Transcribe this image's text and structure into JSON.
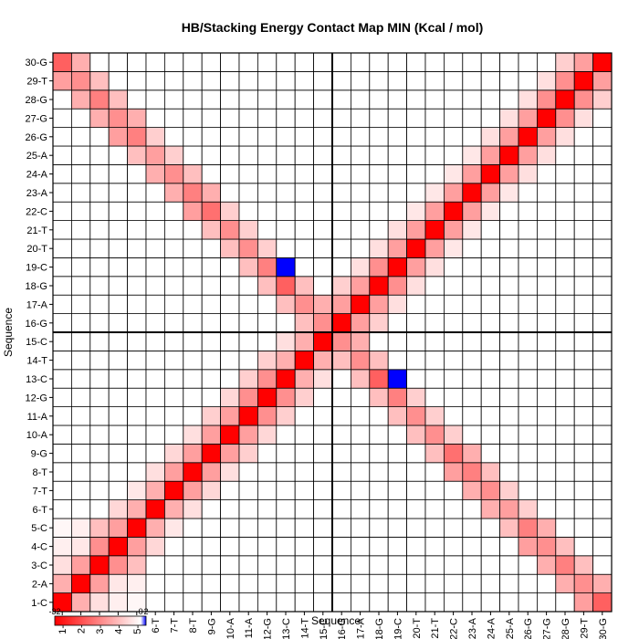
{
  "chart_data": {
    "type": "heatmap",
    "title": "HB/Stacking Energy Contact Map MIN (Kcal / mol)",
    "xlabel": "Sequence",
    "ylabel": "Sequence",
    "labels": [
      "1-C",
      "2-A",
      "3-C",
      "4-C",
      "5-C",
      "6-T",
      "7-T",
      "8-T",
      "9-G",
      "10-A",
      "11-A",
      "12-G",
      "13-C",
      "14-T",
      "15-C",
      "16-G",
      "17-A",
      "18-G",
      "19-C",
      "20-T",
      "21-T",
      "22-C",
      "23-A",
      "24-A",
      "25-A",
      "26-G",
      "27-G",
      "28-G",
      "29-T",
      "30-G"
    ],
    "color_scale": {
      "min": -32,
      "mid": 0,
      "max": 2,
      "min_color": "#ff0000",
      "mid_color": "#ffffff",
      "max_color": "#0000ff"
    },
    "colorbar_ticks": [
      "-32",
      "0",
      "2"
    ],
    "divider_after_index": 15,
    "cells": [
      [
        1,
        1,
        -32
      ],
      [
        1,
        2,
        -10
      ],
      [
        1,
        3,
        -4
      ],
      [
        1,
        4,
        -2
      ],
      [
        1,
        5,
        -1
      ],
      [
        1,
        29,
        -12
      ],
      [
        1,
        30,
        -20
      ],
      [
        2,
        2,
        -32
      ],
      [
        2,
        3,
        -12
      ],
      [
        2,
        4,
        -3
      ],
      [
        2,
        5,
        -2
      ],
      [
        2,
        28,
        -10
      ],
      [
        2,
        29,
        -14
      ],
      [
        2,
        30,
        -10
      ],
      [
        3,
        3,
        -32
      ],
      [
        3,
        4,
        -14
      ],
      [
        3,
        5,
        -8
      ],
      [
        3,
        27,
        -10
      ],
      [
        3,
        28,
        -16
      ],
      [
        3,
        29,
        -8
      ],
      [
        4,
        4,
        -32
      ],
      [
        4,
        5,
        -12
      ],
      [
        4,
        6,
        -5
      ],
      [
        4,
        26,
        -12
      ],
      [
        4,
        27,
        -14
      ],
      [
        4,
        28,
        -8
      ],
      [
        5,
        5,
        -32
      ],
      [
        5,
        6,
        -10
      ],
      [
        5,
        7,
        -3
      ],
      [
        5,
        25,
        -8
      ],
      [
        5,
        26,
        -16
      ],
      [
        5,
        27,
        -10
      ],
      [
        6,
        6,
        -32
      ],
      [
        6,
        7,
        -10
      ],
      [
        6,
        8,
        -4
      ],
      [
        6,
        24,
        -10
      ],
      [
        6,
        25,
        -12
      ],
      [
        6,
        26,
        -6
      ],
      [
        7,
        7,
        -32
      ],
      [
        7,
        8,
        -12
      ],
      [
        7,
        9,
        -5
      ],
      [
        7,
        23,
        -10
      ],
      [
        7,
        24,
        -14
      ],
      [
        7,
        25,
        -6
      ],
      [
        8,
        8,
        -32
      ],
      [
        8,
        9,
        -12
      ],
      [
        8,
        10,
        -4
      ],
      [
        8,
        22,
        -12
      ],
      [
        8,
        23,
        -16
      ],
      [
        8,
        24,
        -8
      ],
      [
        9,
        9,
        -32
      ],
      [
        9,
        10,
        -12
      ],
      [
        9,
        11,
        -6
      ],
      [
        9,
        21,
        -8
      ],
      [
        9,
        22,
        -18
      ],
      [
        9,
        23,
        -10
      ],
      [
        10,
        10,
        -32
      ],
      [
        10,
        11,
        -12
      ],
      [
        10,
        12,
        -5
      ],
      [
        10,
        20,
        -8
      ],
      [
        10,
        21,
        -14
      ],
      [
        10,
        22,
        -6
      ],
      [
        11,
        11,
        -32
      ],
      [
        11,
        12,
        -14
      ],
      [
        11,
        13,
        -6
      ],
      [
        11,
        19,
        -8
      ],
      [
        11,
        20,
        -14
      ],
      [
        11,
        21,
        -6
      ],
      [
        12,
        12,
        -32
      ],
      [
        12,
        13,
        -14
      ],
      [
        12,
        14,
        -6
      ],
      [
        12,
        18,
        -8
      ],
      [
        12,
        19,
        -16
      ],
      [
        12,
        20,
        -6
      ],
      [
        13,
        13,
        -32
      ],
      [
        13,
        14,
        -10
      ],
      [
        13,
        15,
        -4
      ],
      [
        13,
        17,
        -8
      ],
      [
        13,
        18,
        -20
      ],
      [
        13,
        19,
        2
      ],
      [
        14,
        14,
        -32
      ],
      [
        14,
        15,
        -10
      ],
      [
        14,
        16,
        -8
      ],
      [
        14,
        17,
        -14
      ],
      [
        14,
        18,
        -8
      ],
      [
        15,
        15,
        -32
      ],
      [
        15,
        16,
        -14
      ],
      [
        15,
        17,
        -10
      ],
      [
        16,
        16,
        -32
      ],
      [
        16,
        17,
        -12
      ],
      [
        16,
        18,
        -6
      ],
      [
        17,
        17,
        -32
      ],
      [
        17,
        18,
        -12
      ],
      [
        17,
        19,
        -4
      ],
      [
        18,
        18,
        -32
      ],
      [
        18,
        19,
        -14
      ],
      [
        18,
        20,
        -4
      ],
      [
        19,
        19,
        -32
      ],
      [
        19,
        20,
        -12
      ],
      [
        19,
        21,
        -4
      ],
      [
        20,
        20,
        -32
      ],
      [
        20,
        21,
        -12
      ],
      [
        20,
        22,
        -3
      ],
      [
        21,
        21,
        -32
      ],
      [
        21,
        22,
        -12
      ],
      [
        21,
        23,
        -3
      ],
      [
        22,
        22,
        -32
      ],
      [
        22,
        23,
        -12
      ],
      [
        22,
        24,
        -3
      ],
      [
        23,
        23,
        -32
      ],
      [
        23,
        24,
        -12
      ],
      [
        23,
        25,
        -3
      ],
      [
        24,
        24,
        -32
      ],
      [
        24,
        25,
        -12
      ],
      [
        24,
        26,
        -4
      ],
      [
        25,
        25,
        -32
      ],
      [
        25,
        26,
        -12
      ],
      [
        25,
        27,
        -4
      ],
      [
        26,
        26,
        -32
      ],
      [
        26,
        27,
        -12
      ],
      [
        26,
        28,
        -4
      ],
      [
        27,
        27,
        -32
      ],
      [
        27,
        28,
        -14
      ],
      [
        27,
        29,
        -4
      ],
      [
        28,
        28,
        -32
      ],
      [
        28,
        29,
        -14
      ],
      [
        28,
        30,
        -6
      ],
      [
        29,
        29,
        -32
      ],
      [
        29,
        30,
        -12
      ],
      [
        30,
        30,
        -32
      ]
    ]
  }
}
